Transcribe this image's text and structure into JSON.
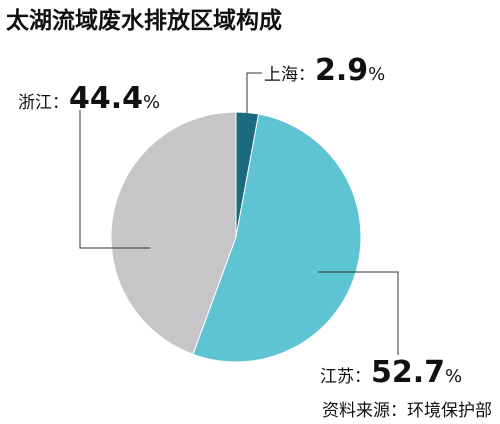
{
  "chart_data": {
    "type": "pie",
    "title": "太湖流域废水排放区域构成",
    "categories": [
      "上海",
      "江苏",
      "浙江"
    ],
    "values": [
      2.9,
      52.7,
      44.4
    ],
    "colors": [
      "#1b6b80",
      "#5ec3d3",
      "#c6c6c8"
    ],
    "label_separator": "：",
    "unit": "%",
    "source": "资料来源：环境保护部"
  }
}
